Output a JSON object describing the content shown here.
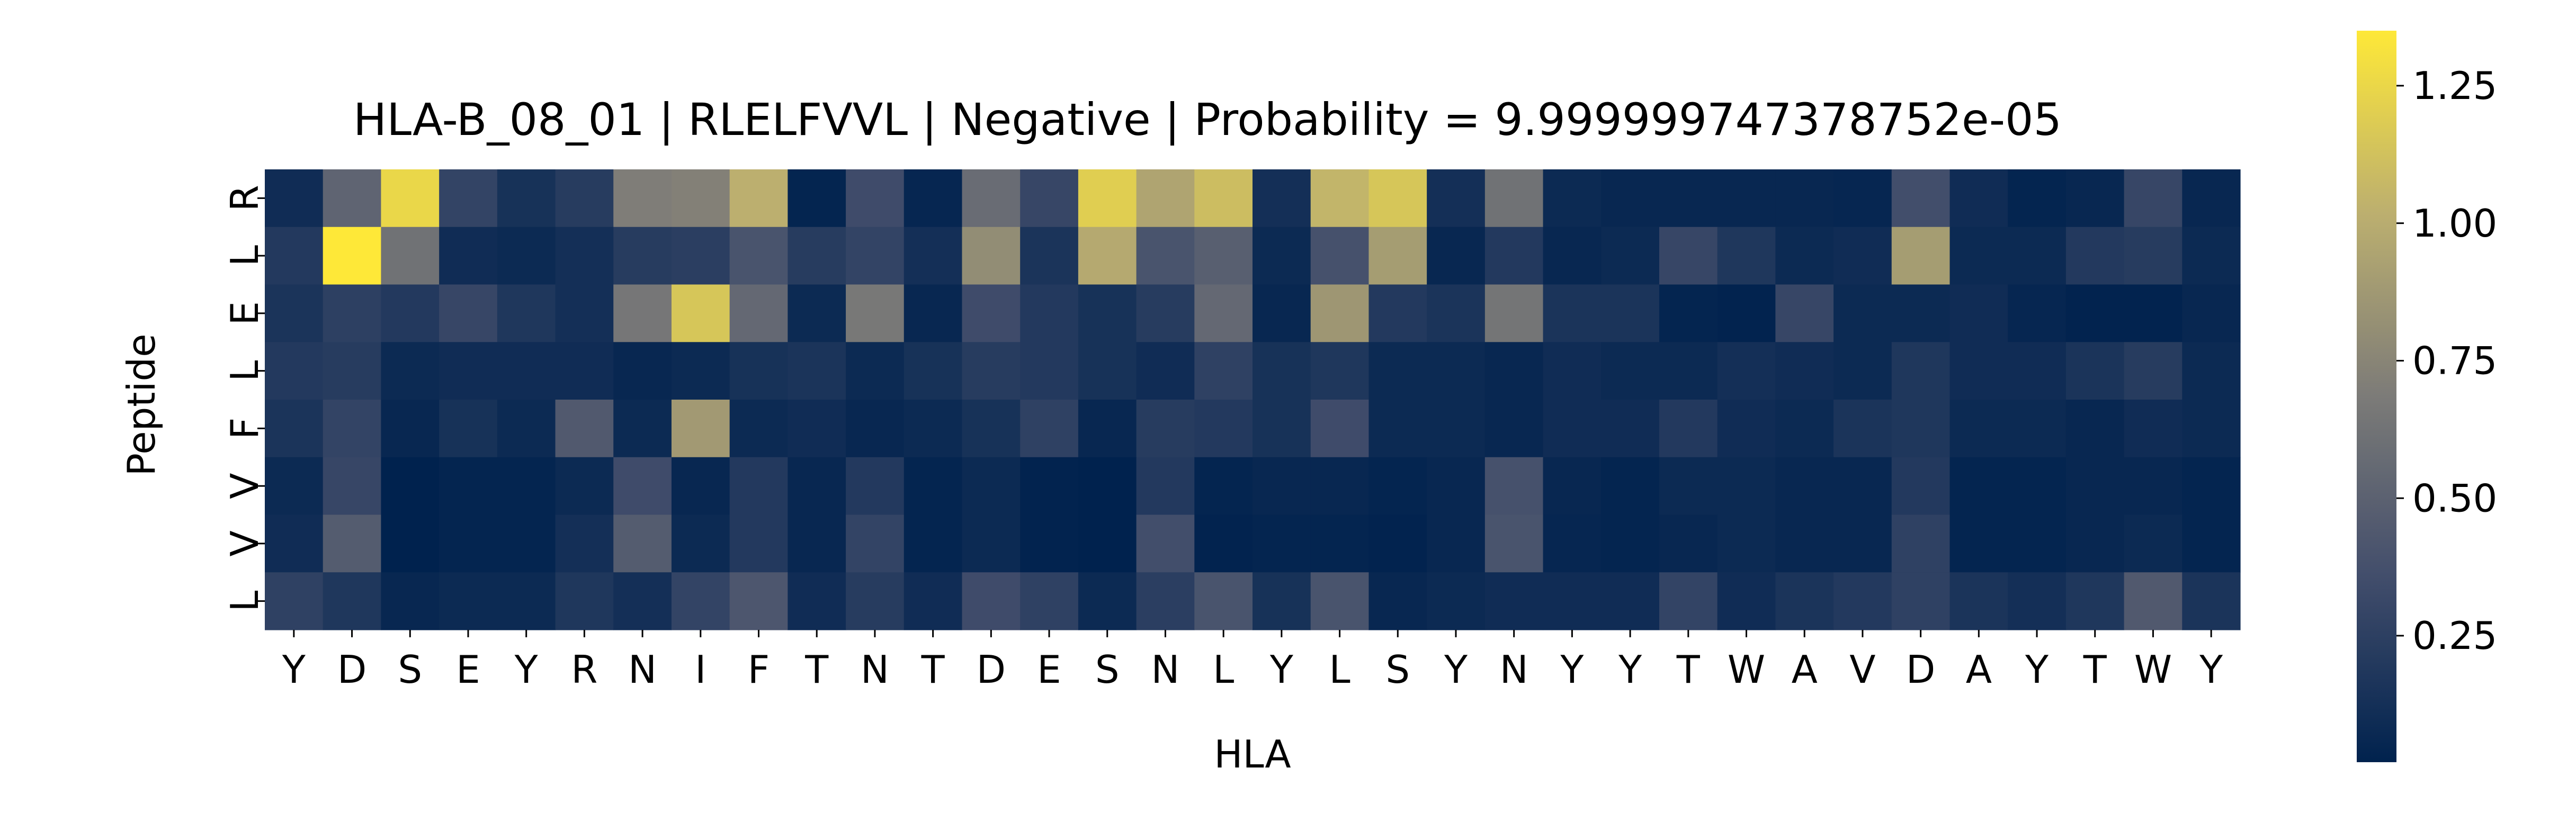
{
  "chart_data": {
    "type": "heatmap",
    "title": "HLA-B_08_01 | RLELFVVL | Negative | Probability = 9.999999747378752e-05",
    "xlabel": "HLA",
    "ylabel": "Peptide",
    "x_ticks": [
      "Y",
      "D",
      "S",
      "E",
      "Y",
      "R",
      "N",
      "I",
      "F",
      "T",
      "N",
      "T",
      "D",
      "E",
      "S",
      "N",
      "L",
      "Y",
      "L",
      "S",
      "Y",
      "N",
      "Y",
      "Y",
      "T",
      "W",
      "A",
      "V",
      "D",
      "A",
      "Y",
      "T",
      "W",
      "Y"
    ],
    "y_ticks": [
      "R",
      "L",
      "E",
      "L",
      "F",
      "V",
      "V",
      "L"
    ],
    "colormap": "cividis",
    "colorbar": {
      "vmin": 0.02,
      "vmax": 1.35,
      "ticks": [
        0.25,
        0.5,
        0.75,
        1.0,
        1.25
      ],
      "tick_labels": [
        "0.25",
        "0.50",
        "0.75",
        "1.00",
        "1.25"
      ]
    },
    "values": [
      [
        0.1,
        0.52,
        1.25,
        0.28,
        0.14,
        0.22,
        0.7,
        0.72,
        1.02,
        0.04,
        0.34,
        0.05,
        0.58,
        0.3,
        1.2,
        0.95,
        1.1,
        0.12,
        1.05,
        1.15,
        0.12,
        0.62,
        0.08,
        0.06,
        0.06,
        0.06,
        0.06,
        0.05,
        0.36,
        0.1,
        0.04,
        0.06,
        0.3,
        0.06
      ],
      [
        0.2,
        1.35,
        0.62,
        0.1,
        0.08,
        0.12,
        0.22,
        0.24,
        0.4,
        0.22,
        0.28,
        0.12,
        0.8,
        0.16,
        0.98,
        0.4,
        0.48,
        0.08,
        0.38,
        0.9,
        0.06,
        0.2,
        0.06,
        0.08,
        0.3,
        0.18,
        0.08,
        0.1,
        0.9,
        0.08,
        0.08,
        0.2,
        0.22,
        0.08
      ],
      [
        0.16,
        0.25,
        0.2,
        0.3,
        0.18,
        0.12,
        0.65,
        1.15,
        0.55,
        0.08,
        0.66,
        0.06,
        0.34,
        0.2,
        0.14,
        0.22,
        0.55,
        0.06,
        0.86,
        0.2,
        0.16,
        0.64,
        0.16,
        0.16,
        0.04,
        0.03,
        0.3,
        0.08,
        0.08,
        0.1,
        0.05,
        0.03,
        0.03,
        0.06
      ],
      [
        0.2,
        0.22,
        0.08,
        0.1,
        0.1,
        0.1,
        0.06,
        0.08,
        0.14,
        0.16,
        0.08,
        0.14,
        0.22,
        0.2,
        0.14,
        0.1,
        0.26,
        0.14,
        0.18,
        0.08,
        0.08,
        0.06,
        0.1,
        0.08,
        0.08,
        0.12,
        0.1,
        0.08,
        0.18,
        0.1,
        0.1,
        0.16,
        0.22,
        0.08
      ],
      [
        0.16,
        0.28,
        0.06,
        0.14,
        0.08,
        0.44,
        0.08,
        0.88,
        0.08,
        0.1,
        0.06,
        0.08,
        0.14,
        0.26,
        0.06,
        0.22,
        0.2,
        0.14,
        0.34,
        0.08,
        0.08,
        0.06,
        0.1,
        0.1,
        0.2,
        0.1,
        0.08,
        0.16,
        0.18,
        0.08,
        0.08,
        0.06,
        0.1,
        0.08
      ],
      [
        0.08,
        0.3,
        0.02,
        0.04,
        0.04,
        0.08,
        0.34,
        0.06,
        0.2,
        0.06,
        0.2,
        0.04,
        0.08,
        0.03,
        0.02,
        0.2,
        0.04,
        0.06,
        0.06,
        0.04,
        0.06,
        0.38,
        0.06,
        0.04,
        0.08,
        0.08,
        0.06,
        0.06,
        0.2,
        0.04,
        0.04,
        0.06,
        0.06,
        0.04
      ],
      [
        0.1,
        0.46,
        0.02,
        0.04,
        0.04,
        0.12,
        0.46,
        0.08,
        0.2,
        0.06,
        0.28,
        0.04,
        0.08,
        0.03,
        0.02,
        0.36,
        0.03,
        0.04,
        0.04,
        0.03,
        0.06,
        0.4,
        0.05,
        0.04,
        0.06,
        0.08,
        0.06,
        0.06,
        0.26,
        0.04,
        0.04,
        0.06,
        0.08,
        0.04
      ],
      [
        0.26,
        0.18,
        0.06,
        0.08,
        0.08,
        0.18,
        0.12,
        0.28,
        0.42,
        0.1,
        0.22,
        0.1,
        0.34,
        0.26,
        0.08,
        0.24,
        0.4,
        0.14,
        0.4,
        0.06,
        0.08,
        0.1,
        0.1,
        0.1,
        0.28,
        0.1,
        0.16,
        0.2,
        0.26,
        0.16,
        0.12,
        0.18,
        0.44,
        0.16
      ]
    ]
  }
}
